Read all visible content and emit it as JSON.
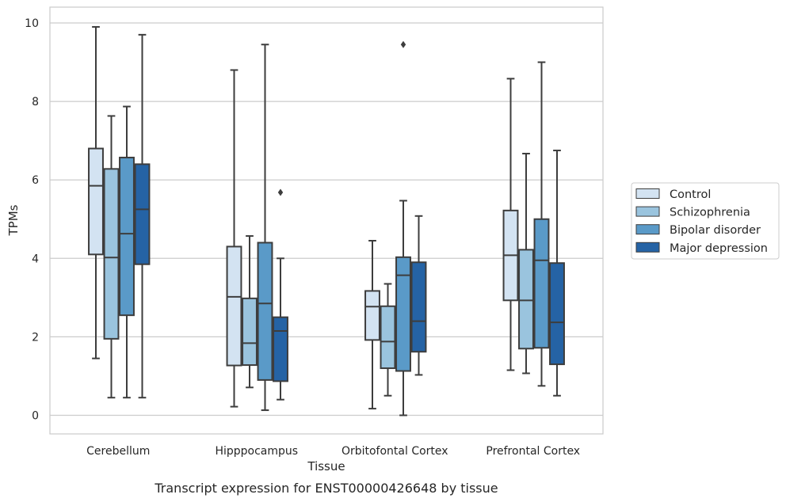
{
  "chart_data": {
    "type": "boxplot",
    "caption": "Transcript expression for ENST00000426648 by tissue",
    "xlabel": "Tissue",
    "ylabel": "TPMs",
    "ylim": [
      -0.45,
      10.4
    ],
    "yticks": [
      0,
      2,
      4,
      6,
      8,
      10
    ],
    "grid": "horizontal",
    "legend_position": "right",
    "categories": [
      "Cerebellum",
      "Hipppocampus",
      "Orbitofontal Cortex",
      "Prefrontal Cortex"
    ],
    "series": [
      {
        "name": "Control",
        "color": "#d3e3f2",
        "boxes": [
          {
            "whislo": 1.45,
            "q1": 4.1,
            "med": 5.85,
            "q3": 6.8,
            "whishi": 9.9,
            "fliers": []
          },
          {
            "whislo": 0.22,
            "q1": 1.27,
            "med": 3.02,
            "q3": 4.3,
            "whishi": 8.8,
            "fliers": []
          },
          {
            "whislo": 0.17,
            "q1": 1.92,
            "med": 2.77,
            "q3": 3.17,
            "whishi": 4.45,
            "fliers": []
          },
          {
            "whislo": 1.15,
            "q1": 2.93,
            "med": 4.08,
            "q3": 5.22,
            "whishi": 8.58,
            "fliers": []
          }
        ]
      },
      {
        "name": "Schizophrenia",
        "color": "#9ac4de",
        "boxes": [
          {
            "whislo": 0.45,
            "q1": 1.95,
            "med": 4.02,
            "q3": 6.28,
            "whishi": 7.63,
            "fliers": []
          },
          {
            "whislo": 0.71,
            "q1": 1.28,
            "med": 1.84,
            "q3": 2.98,
            "whishi": 4.57,
            "fliers": []
          },
          {
            "whislo": 0.5,
            "q1": 1.2,
            "med": 1.88,
            "q3": 2.78,
            "whishi": 3.35,
            "fliers": []
          },
          {
            "whislo": 1.07,
            "q1": 1.7,
            "med": 2.93,
            "q3": 4.22,
            "whishi": 6.67,
            "fliers": []
          }
        ]
      },
      {
        "name": "Bipolar disorder",
        "color": "#5a9ac8",
        "boxes": [
          {
            "whislo": 0.45,
            "q1": 2.55,
            "med": 4.63,
            "q3": 6.57,
            "whishi": 7.87,
            "fliers": []
          },
          {
            "whislo": 0.13,
            "q1": 0.9,
            "med": 2.85,
            "q3": 4.4,
            "whishi": 9.45,
            "fliers": []
          },
          {
            "whislo": 0.0,
            "q1": 1.13,
            "med": 3.57,
            "q3": 4.03,
            "whishi": 5.47,
            "fliers": [
              9.45
            ]
          },
          {
            "whislo": 0.75,
            "q1": 1.72,
            "med": 3.95,
            "q3": 5.0,
            "whishi": 9.0,
            "fliers": []
          }
        ]
      },
      {
        "name": "Major depression",
        "color": "#2563a5",
        "boxes": [
          {
            "whislo": 0.45,
            "q1": 3.85,
            "med": 5.25,
            "q3": 6.4,
            "whishi": 9.7,
            "fliers": []
          },
          {
            "whislo": 0.4,
            "q1": 0.87,
            "med": 2.15,
            "q3": 2.5,
            "whishi": 4.0,
            "fliers": [
              5.68
            ]
          },
          {
            "whislo": 1.03,
            "q1": 1.62,
            "med": 2.4,
            "q3": 3.9,
            "whishi": 5.08,
            "fliers": []
          },
          {
            "whislo": 0.5,
            "q1": 1.3,
            "med": 2.37,
            "q3": 3.88,
            "whishi": 6.75,
            "fliers": []
          }
        ]
      }
    ]
  }
}
